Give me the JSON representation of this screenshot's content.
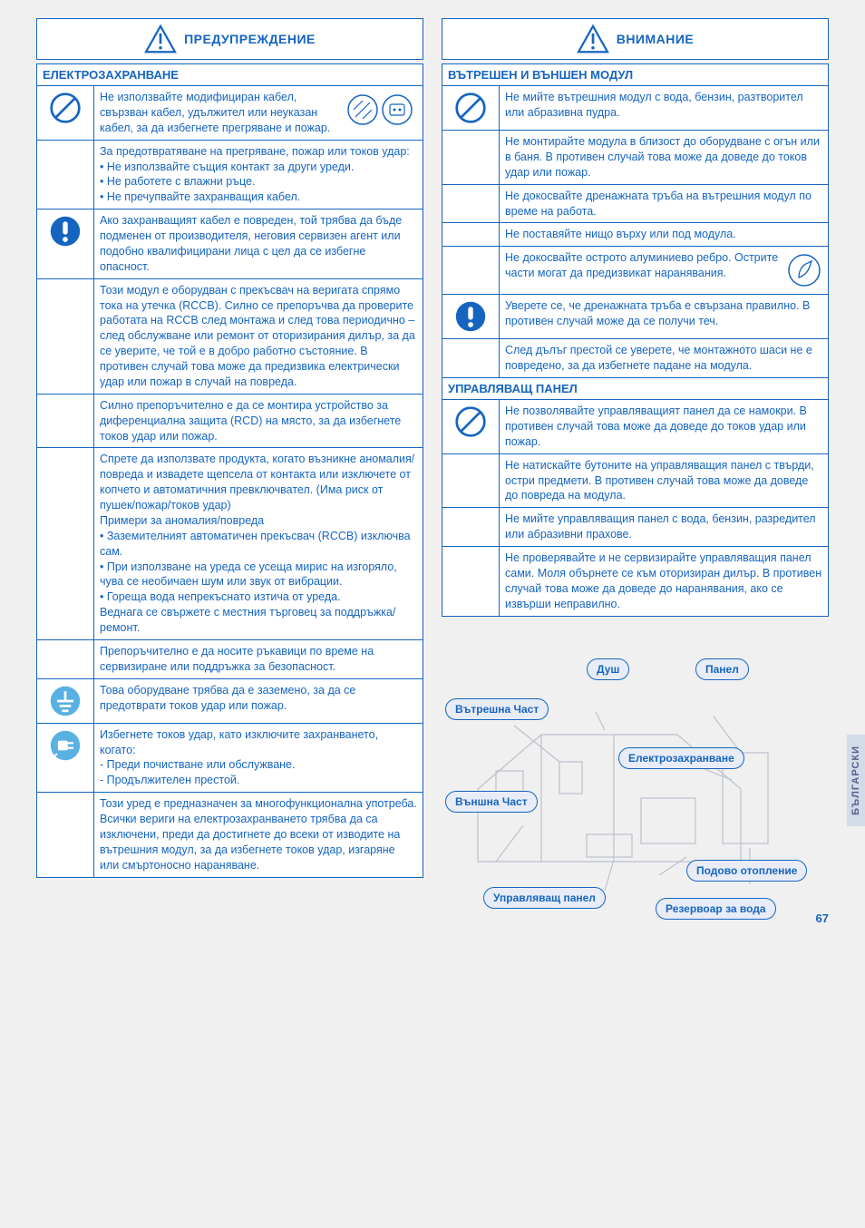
{
  "left": {
    "header": "ПРЕДУПРЕЖДЕНИЕ",
    "section1": "ЕЛЕКТРОЗАХРАНВАНЕ",
    "rows": [
      {
        "icon": "no",
        "text": "Не използвайте модифициран кабел, свързван кабел, удължител или неуказан кабел, за да избегнете прегряване и пожар.",
        "img": "double"
      },
      {
        "icon": "",
        "text": "За предотвратяване на прегряване, пожар или токов удар:\n• Не използвайте същия контакт за други уреди.\n• Не работете с влажни ръце.\n• Не пречупвайте захранващия кабел."
      },
      {
        "icon": "bang",
        "text": "Ако захранващият кабел е повреден, той трябва да бъде подменен от производителя, неговия сервизен агент или подобно квалифицирани лица с цел да се избегне опасност."
      },
      {
        "icon": "",
        "text": "Този модул е оборудван с прекъсвач на веригата спрямо тока на утечка (RCCB). Силно се препоръчва да проверите работата на RCCB след монтажа и след това периодично – след обслужване или ремонт от оторизирания дилър, за да се уверите, че той е в добро работно състояние. В противен случай това може да предизвика електрически удар или пожар в случай на повреда."
      },
      {
        "icon": "",
        "text": "Силно препоръчително е да се монтира устройство за диференциална защита (RCD) на място, за да избегнете токов удар или пожар."
      },
      {
        "icon": "",
        "text": "Спрете да използвате продукта, когато възникне аномалия/повреда и извадете щепсела от контакта или изключете от копчето и автоматичния превключвател. (Има риск от пушек/пожар/токов удар)\nПримери за аномалия/повреда\n• Заземителният автоматичен прекъсвач (RCCB) изключва сам.\n• При използване на уреда се усеща мирис на изгоряло, чува се необичаен шум или звук от вибрации.\n• Гореща вода непрекъснато изтича от уреда.\nВеднага се свържете с местния търговец за поддръжка/ремонт."
      },
      {
        "icon": "",
        "text": "Препоръчително е да носите ръкавици по време на сервизиране или поддръжка за безопасност."
      },
      {
        "icon": "ground",
        "text": "Това оборудване трябва да е заземено, за да се предотврати токов удар или пожар."
      },
      {
        "icon": "unplug",
        "text": "Избегнете токов удар, като изключите захранването, когато:\n- Преди почистване или обслужване.\n- Продължителен престой."
      },
      {
        "icon": "",
        "text": "Този уред е предназначен за многофункционална употреба. Всички вериги на електрозахранването трябва да са изключени, преди да достигнете до всеки от изводите на вътрешния модул, за да избегнете токов удар, изгаряне или смъртоносно нараняване."
      }
    ]
  },
  "right": {
    "header": "ВНИМАНИЕ",
    "section1": "ВЪТРЕШЕН И ВЪНШЕН МОДУЛ",
    "rows1": [
      {
        "icon": "no",
        "text": "Не мийте вътрешния модул с вода, бензин, разтворител или абразивна пудра."
      },
      {
        "icon": "",
        "text": "Не монтирайте модула в близост до оборудване с огън или в баня. В противен случай това може да доведе до токов удар или пожар."
      },
      {
        "icon": "",
        "text": "Не докосвайте дренажната тръба на вътрешния модул по време на работа."
      },
      {
        "icon": "",
        "text": "Не поставяйте нищо върху или под модула."
      },
      {
        "icon": "",
        "text": "Не докосвайте острото алуминиево ребро. Острите части могат да предизвикат наранявания.",
        "img": "small"
      },
      {
        "icon": "bang",
        "text": "Уверете се, че дренажната тръба е свързана правилно. В противен случай може да се получи теч."
      },
      {
        "icon": "",
        "text": "След дълъг престой се уверете, че монтажното шаси не е повредено, за да избегнете падане на модула."
      }
    ],
    "section2": "УПРАВЛЯВАЩ ПАНЕЛ",
    "rows2": [
      {
        "icon": "no",
        "text": "Не позволявайте управляващият панел да се намокри. В противен случай това може да доведе до токов удар или пожар."
      },
      {
        "icon": "",
        "text": "Не натискайте бутоните на управляващия панел с твърди, остри предмети. В противен случай това може да доведе до повреда на модула."
      },
      {
        "icon": "",
        "text": "Не мийте управляващия панел с вода, бензин, разредител или абразивни прахове."
      },
      {
        "icon": "",
        "text": "Не проверявайте и не сервизирайте управляващия панел сами. Моля обърнете се към оторизиран дилър. В противен случай това може да доведе до наранявания, ако се извърши неправилно."
      }
    ],
    "diagram": {
      "pills": {
        "inner": "Вътрешна Част",
        "shower": "Душ",
        "panel": "Панел",
        "power": "Електрозахранване",
        "outer": "Външна Част",
        "floor": "Подово отопление",
        "ctrl": "Управляващ панел",
        "tank": "Резервоар за вода"
      }
    }
  },
  "sidetab": "БЪЛГАРСКИ",
  "pagenum": "67"
}
